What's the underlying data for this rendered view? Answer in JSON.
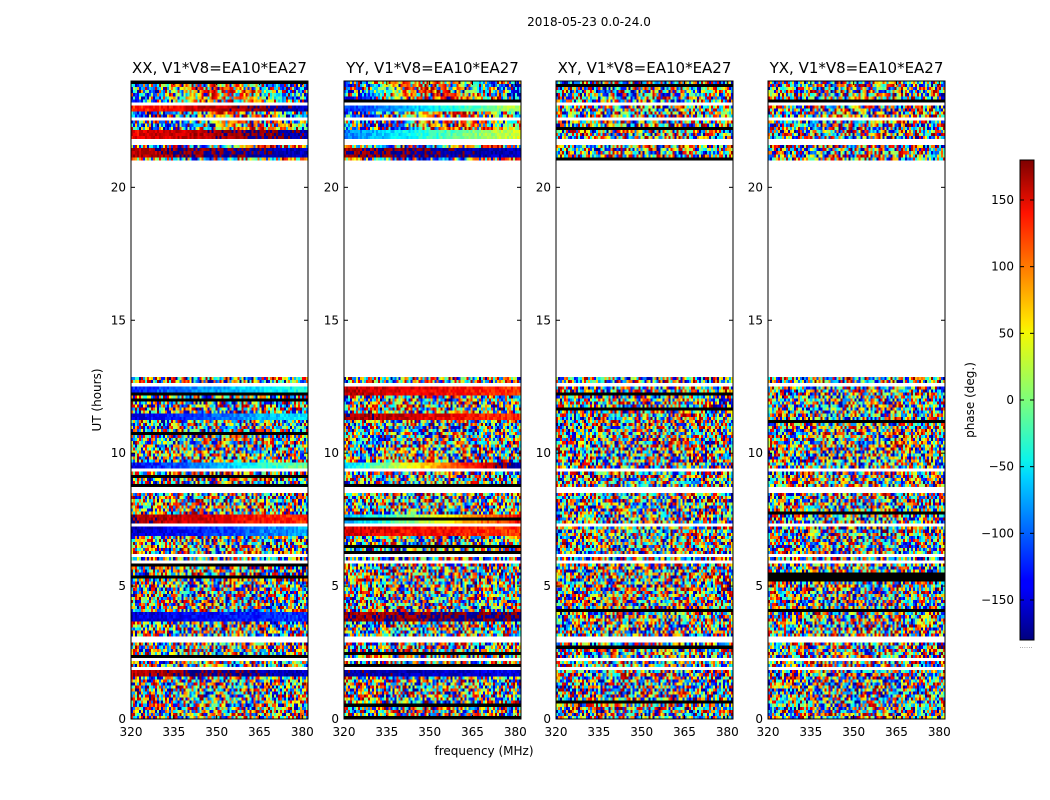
{
  "figure": {
    "suptitle": "2018-05-23 0.0-24.0"
  },
  "colorbar": {
    "label": "phase (deg.)",
    "colormap": "jet",
    "range": [
      -180,
      180
    ],
    "ticks": [
      150,
      100,
      50,
      0,
      -50,
      -100,
      -150
    ],
    "tick_labels": [
      "150",
      "100",
      "50",
      "0",
      "−50",
      "−100",
      "−150"
    ],
    "footer": "......"
  },
  "chart_data": {
    "type": "heatmap",
    "xlabel": "frequency (MHz)",
    "ylabel": "UT (hours)",
    "xlim": [
      320,
      382
    ],
    "ylim": [
      0,
      24
    ],
    "x_ticks": [
      320,
      335,
      350,
      365,
      380
    ],
    "x_tick_labels": [
      "320",
      "335",
      "350",
      "365",
      "380"
    ],
    "y_ticks": [
      0,
      5,
      10,
      15,
      20
    ],
    "y_tick_labels": [
      "0",
      "5",
      "10",
      "15",
      "20"
    ],
    "value_label": "phase (deg.)",
    "value_range": [
      -180,
      180
    ],
    "data_gap_hours": [
      [
        12.9,
        21.0
      ]
    ],
    "flagged_rows_hours": [
      1.85,
      2.25,
      2.95,
      5.85,
      6.1,
      7.3,
      8.6,
      9.3,
      12.6,
      21.7,
      22.6,
      23.1
    ],
    "panels": [
      {
        "title": "XX, V1*V8=EA10*EA27",
        "polarization": "XX",
        "coherent_phase": true,
        "coherent_bands": [
          {
            "t": 9.48,
            "phase": -140,
            "slope": 1.6
          },
          {
            "t": 11.35,
            "phase": -150,
            "slope": 1.2
          },
          {
            "t": 12.3,
            "phase": -120,
            "slope": 1.0
          },
          {
            "t": 7.55,
            "phase": 170,
            "slope": -0.6
          },
          {
            "t": 7.05,
            "phase": -160,
            "slope": 1.0
          },
          {
            "t": 3.85,
            "phase": -150,
            "slope": 0.4
          },
          {
            "t": 1.75,
            "phase": 160,
            "slope": 0.5
          },
          {
            "t": 23.0,
            "phase": 120,
            "slope": 0.9
          },
          {
            "t": 22.0,
            "phase": 140,
            "slope": 0.6
          },
          {
            "t": 21.3,
            "phase": 160,
            "slope": 0.5
          }
        ]
      },
      {
        "title": "YY, V1*V8=EA10*EA27",
        "polarization": "YY",
        "coherent_phase": true,
        "coherent_bands": [
          {
            "t": 9.48,
            "phase": -60,
            "slope": 3.0
          },
          {
            "t": 11.35,
            "phase": 170,
            "slope": -0.6
          },
          {
            "t": 12.3,
            "phase": 160,
            "slope": -0.5
          },
          {
            "t": 7.55,
            "phase": -80,
            "slope": 2.5
          },
          {
            "t": 7.05,
            "phase": 150,
            "slope": -0.4
          },
          {
            "t": 3.85,
            "phase": 170,
            "slope": 0.2
          },
          {
            "t": 1.75,
            "phase": -170,
            "slope": 0.3
          },
          {
            "t": 23.0,
            "phase": -120,
            "slope": 1.6
          },
          {
            "t": 22.0,
            "phase": -90,
            "slope": 1.4
          },
          {
            "t": 21.3,
            "phase": 170,
            "slope": 0.4
          }
        ]
      },
      {
        "title": "XY, V1*V8=EA10*EA27",
        "polarization": "XY",
        "coherent_phase": false,
        "coherent_bands": []
      },
      {
        "title": "YX, V1*V8=EA10*EA27",
        "polarization": "YX",
        "coherent_phase": false,
        "coherent_bands": []
      }
    ]
  }
}
